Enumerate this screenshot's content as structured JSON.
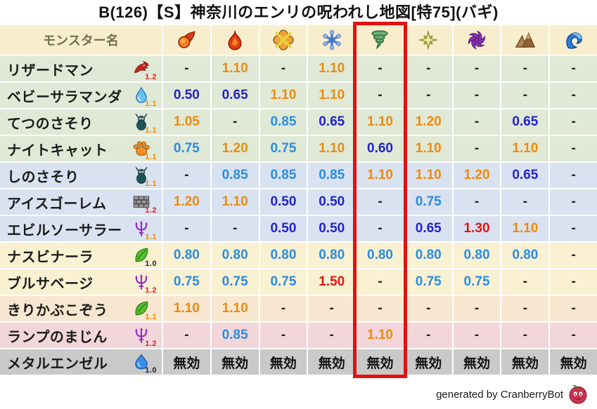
{
  "title": "B(126)【S】神奈川のエンリの呪われし地図[特75](バギ)",
  "footer": {
    "text": "generated by CranberryBot",
    "icon": "cranberry-bot-icon"
  },
  "colors": {
    "highlight_box": "#e31111",
    "header_bg": "#f8eecd",
    "header_text": "#6f6f4e",
    "value_strong_resist": "#2222cc",
    "value_resist": "#2b8ce0",
    "value_weak": "#ef8a0c",
    "value_very_weak": "#e01414",
    "row_green": "#dfe9d6",
    "row_blue": "#d9e2f1",
    "row_cream": "#faf1d2",
    "row_peach": "#f8e7d0",
    "row_pink": "#f2d6da",
    "row_gray": "#c9c9c9"
  },
  "table": {
    "name_header": "モンスター名",
    "highlight_column_index": 4,
    "columns": [
      {
        "id": "mera",
        "icon": "fireball-icon"
      },
      {
        "id": "gira",
        "icon": "flame-icon"
      },
      {
        "id": "io",
        "icon": "explosion-icon"
      },
      {
        "id": "hyado",
        "icon": "snowflake-icon"
      },
      {
        "id": "bagi",
        "icon": "tornado-icon"
      },
      {
        "id": "dein",
        "icon": "star-icon"
      },
      {
        "id": "doruma",
        "icon": "pinwheel-icon"
      },
      {
        "id": "earth",
        "icon": "mountain-icon"
      },
      {
        "id": "water",
        "icon": "wave-icon"
      }
    ],
    "rows": [
      {
        "name": "リザードマン",
        "family_icon": "dragon-icon",
        "multiplier": "1.2",
        "multiplier_color": "red",
        "row_color": "green",
        "values": [
          {
            "t": "-",
            "c": "dash"
          },
          {
            "t": "1.10",
            "c": "orange"
          },
          {
            "t": "-",
            "c": "dash"
          },
          {
            "t": "1.10",
            "c": "orange"
          },
          {
            "t": "-",
            "c": "dash"
          },
          {
            "t": "-",
            "c": "dash"
          },
          {
            "t": "-",
            "c": "dash"
          },
          {
            "t": "-",
            "c": "dash"
          },
          {
            "t": "-",
            "c": "dash"
          }
        ]
      },
      {
        "name": "ベビーサラマンダ",
        "family_icon": "water-drop-icon",
        "multiplier": "1.1",
        "multiplier_color": "orange",
        "row_color": "green",
        "values": [
          {
            "t": "0.50",
            "c": "navy"
          },
          {
            "t": "0.65",
            "c": "navy"
          },
          {
            "t": "1.10",
            "c": "orange"
          },
          {
            "t": "1.10",
            "c": "orange"
          },
          {
            "t": "-",
            "c": "dash"
          },
          {
            "t": "-",
            "c": "dash"
          },
          {
            "t": "-",
            "c": "dash"
          },
          {
            "t": "-",
            "c": "dash"
          },
          {
            "t": "-",
            "c": "dash"
          }
        ]
      },
      {
        "name": "てつのさそり",
        "family_icon": "bug-icon",
        "multiplier": "1.1",
        "multiplier_color": "orange",
        "row_color": "green",
        "values": [
          {
            "t": "1.05",
            "c": "orange"
          },
          {
            "t": "-",
            "c": "dash"
          },
          {
            "t": "0.85",
            "c": "blue"
          },
          {
            "t": "0.65",
            "c": "navy"
          },
          {
            "t": "1.10",
            "c": "orange"
          },
          {
            "t": "1.20",
            "c": "orange"
          },
          {
            "t": "-",
            "c": "dash"
          },
          {
            "t": "0.65",
            "c": "navy"
          },
          {
            "t": "-",
            "c": "dash"
          }
        ]
      },
      {
        "name": "ナイトキャット",
        "family_icon": "paw-icon",
        "multiplier": "1.1",
        "multiplier_color": "orange",
        "row_color": "green",
        "values": [
          {
            "t": "0.75",
            "c": "blue"
          },
          {
            "t": "1.20",
            "c": "orange"
          },
          {
            "t": "0.75",
            "c": "blue"
          },
          {
            "t": "1.10",
            "c": "orange"
          },
          {
            "t": "0.60",
            "c": "navy"
          },
          {
            "t": "1.10",
            "c": "orange"
          },
          {
            "t": "-",
            "c": "dash"
          },
          {
            "t": "1.10",
            "c": "orange"
          },
          {
            "t": "-",
            "c": "dash"
          }
        ]
      },
      {
        "name": "しのさそり",
        "family_icon": "bug-icon",
        "multiplier": "1.1",
        "multiplier_color": "orange",
        "row_color": "blue",
        "values": [
          {
            "t": "-",
            "c": "dash"
          },
          {
            "t": "0.85",
            "c": "blue"
          },
          {
            "t": "0.85",
            "c": "blue"
          },
          {
            "t": "0.85",
            "c": "blue"
          },
          {
            "t": "1.10",
            "c": "orange"
          },
          {
            "t": "1.10",
            "c": "orange"
          },
          {
            "t": "1.20",
            "c": "orange"
          },
          {
            "t": "0.65",
            "c": "navy"
          },
          {
            "t": "-",
            "c": "dash"
          }
        ]
      },
      {
        "name": "アイスゴーレム",
        "family_icon": "brick-icon",
        "multiplier": "1.2",
        "multiplier_color": "red",
        "row_color": "blue",
        "values": [
          {
            "t": "1.20",
            "c": "orange"
          },
          {
            "t": "1.10",
            "c": "orange"
          },
          {
            "t": "0.50",
            "c": "navy"
          },
          {
            "t": "0.50",
            "c": "navy"
          },
          {
            "t": "-",
            "c": "dash"
          },
          {
            "t": "0.75",
            "c": "blue"
          },
          {
            "t": "-",
            "c": "dash"
          },
          {
            "t": "-",
            "c": "dash"
          },
          {
            "t": "-",
            "c": "dash"
          }
        ]
      },
      {
        "name": "エビルソーサラー",
        "family_icon": "trident-icon",
        "multiplier": "1.1",
        "multiplier_color": "orange",
        "row_color": "blue",
        "values": [
          {
            "t": "-",
            "c": "dash"
          },
          {
            "t": "-",
            "c": "dash"
          },
          {
            "t": "0.50",
            "c": "navy"
          },
          {
            "t": "0.50",
            "c": "navy"
          },
          {
            "t": "-",
            "c": "dash"
          },
          {
            "t": "0.65",
            "c": "navy"
          },
          {
            "t": "1.30",
            "c": "red"
          },
          {
            "t": "1.10",
            "c": "orange"
          },
          {
            "t": "-",
            "c": "dash"
          }
        ]
      },
      {
        "name": "ナスビナーラ",
        "family_icon": "leaf-icon",
        "multiplier": "1.0",
        "multiplier_color": "black",
        "row_color": "cream",
        "values": [
          {
            "t": "0.80",
            "c": "blue"
          },
          {
            "t": "0.80",
            "c": "blue"
          },
          {
            "t": "0.80",
            "c": "blue"
          },
          {
            "t": "0.80",
            "c": "blue"
          },
          {
            "t": "0.80",
            "c": "blue"
          },
          {
            "t": "0.80",
            "c": "blue"
          },
          {
            "t": "0.80",
            "c": "blue"
          },
          {
            "t": "0.80",
            "c": "blue"
          },
          {
            "t": "-",
            "c": "dash"
          }
        ]
      },
      {
        "name": "ブルサベージ",
        "family_icon": "trident-icon",
        "multiplier": "1.2",
        "multiplier_color": "red",
        "row_color": "cream",
        "values": [
          {
            "t": "0.75",
            "c": "blue"
          },
          {
            "t": "0.75",
            "c": "blue"
          },
          {
            "t": "0.75",
            "c": "blue"
          },
          {
            "t": "1.50",
            "c": "red"
          },
          {
            "t": "-",
            "c": "dash"
          },
          {
            "t": "0.75",
            "c": "blue"
          },
          {
            "t": "0.75",
            "c": "blue"
          },
          {
            "t": "-",
            "c": "dash"
          },
          {
            "t": "-",
            "c": "dash"
          }
        ]
      },
      {
        "name": "きりかぶこぞう",
        "family_icon": "leaf-icon",
        "multiplier": "1.1",
        "multiplier_color": "orange",
        "row_color": "peach",
        "values": [
          {
            "t": "1.10",
            "c": "orange"
          },
          {
            "t": "1.10",
            "c": "orange"
          },
          {
            "t": "-",
            "c": "dash"
          },
          {
            "t": "-",
            "c": "dash"
          },
          {
            "t": "-",
            "c": "dash"
          },
          {
            "t": "-",
            "c": "dash"
          },
          {
            "t": "-",
            "c": "dash"
          },
          {
            "t": "-",
            "c": "dash"
          },
          {
            "t": "-",
            "c": "dash"
          }
        ]
      },
      {
        "name": "ランプのまじん",
        "family_icon": "trident-icon",
        "multiplier": "1.2",
        "multiplier_color": "red",
        "row_color": "pink",
        "values": [
          {
            "t": "-",
            "c": "dash"
          },
          {
            "t": "0.85",
            "c": "blue"
          },
          {
            "t": "-",
            "c": "dash"
          },
          {
            "t": "-",
            "c": "dash"
          },
          {
            "t": "1.10",
            "c": "orange"
          },
          {
            "t": "-",
            "c": "dash"
          },
          {
            "t": "-",
            "c": "dash"
          },
          {
            "t": "-",
            "c": "dash"
          },
          {
            "t": "-",
            "c": "dash"
          }
        ]
      },
      {
        "name": "メタルエンゼル",
        "family_icon": "slime-icon",
        "multiplier": "1.0",
        "multiplier_color": "black",
        "row_color": "gray",
        "values": [
          {
            "t": "無効",
            "c": "black"
          },
          {
            "t": "無効",
            "c": "black"
          },
          {
            "t": "無効",
            "c": "black"
          },
          {
            "t": "無効",
            "c": "black"
          },
          {
            "t": "無効",
            "c": "black"
          },
          {
            "t": "無効",
            "c": "black"
          },
          {
            "t": "無効",
            "c": "black"
          },
          {
            "t": "無効",
            "c": "black"
          },
          {
            "t": "無効",
            "c": "black"
          }
        ]
      }
    ]
  }
}
